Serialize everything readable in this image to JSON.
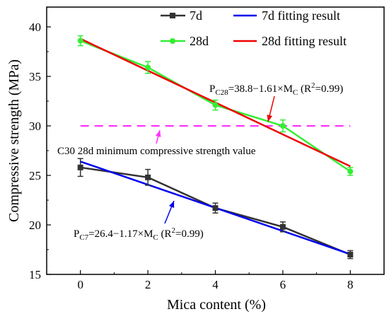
{
  "chart_data": {
    "type": "line",
    "title": "",
    "xlabel": "Mica content (%)",
    "ylabel": "Compressive strength (MPa)",
    "xlim": [
      -1,
      9
    ],
    "ylim": [
      15,
      42
    ],
    "x_ticks": [
      0,
      2,
      4,
      6,
      8
    ],
    "y_ticks": [
      15,
      20,
      25,
      30,
      35,
      40
    ],
    "grid": false,
    "legend_position": "top-right",
    "x": [
      0,
      2,
      4,
      6,
      8
    ],
    "series": [
      {
        "name": "7d",
        "kind": "measured",
        "color": "#333333",
        "marker": "square",
        "values": [
          25.8,
          24.8,
          21.7,
          19.8,
          17.0
        ],
        "errors": [
          0.9,
          0.8,
          0.5,
          0.5,
          0.4
        ]
      },
      {
        "name": "28d",
        "kind": "measured",
        "color": "#33ee33",
        "marker": "circle",
        "values": [
          38.6,
          35.9,
          32.1,
          30.0,
          25.4
        ],
        "errors": [
          0.5,
          0.6,
          0.5,
          0.6,
          0.4
        ]
      },
      {
        "name": "7d fitting result",
        "kind": "fit",
        "color": "#0000ee",
        "intercept": 26.4,
        "slope": -1.17
      },
      {
        "name": "28d fitting result",
        "kind": "fit",
        "color": "#ee0000",
        "intercept": 38.8,
        "slope": -1.61
      }
    ],
    "reference_line": {
      "y": 30,
      "color": "#ff33ff",
      "label": "C30 28d minimum compressive strength value"
    },
    "annotations": {
      "eq28": {
        "lead": "P",
        "sub1": "C28",
        "mid": "=38.8−1.61×M",
        "sub2": "C",
        "pre": " (R",
        "sup": "2",
        "post": "=0.99)",
        "color": "#ee0000"
      },
      "eq7": {
        "lead": "P",
        "sub1": "C7",
        "mid": "=26.4−1.17×M",
        "sub2": "C",
        "pre": " (R",
        "sup": "2",
        "post": "=0.99)",
        "color": "#0000ee"
      }
    }
  }
}
